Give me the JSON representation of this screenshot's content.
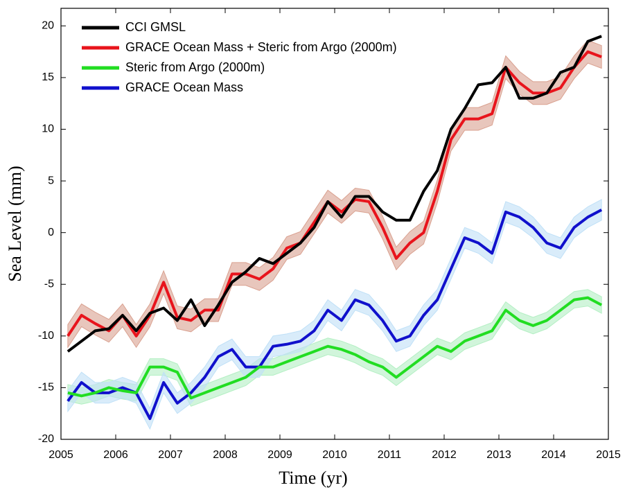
{
  "chart_data": {
    "type": "line",
    "x_label": "Time (yr)",
    "y_label": "Sea Level (mm)",
    "xlim": [
      2005,
      2015
    ],
    "ylim": [
      -20,
      21.7
    ],
    "xticks": [
      2005,
      2006,
      2007,
      2008,
      2009,
      2010,
      2011,
      2012,
      2013,
      2014,
      2015
    ],
    "yticks": [
      -20,
      -15,
      -10,
      -5,
      0,
      5,
      10,
      15,
      20
    ],
    "grid": false,
    "legend": "upper left",
    "x": [
      2005.125,
      2005.375,
      2005.625,
      2005.875,
      2006.125,
      2006.375,
      2006.625,
      2006.875,
      2007.125,
      2007.375,
      2007.625,
      2007.875,
      2008.125,
      2008.375,
      2008.625,
      2008.875,
      2009.125,
      2009.375,
      2009.625,
      2009.875,
      2010.125,
      2010.375,
      2010.625,
      2010.875,
      2011.125,
      2011.375,
      2011.625,
      2011.875,
      2012.125,
      2012.375,
      2012.625,
      2012.875,
      2013.125,
      2013.375,
      2013.625,
      2013.875,
      2014.125,
      2014.375,
      2014.625,
      2014.875
    ],
    "series": [
      {
        "name": "CCI GMSL",
        "color": "#000000",
        "values": [
          -11.5,
          -10.5,
          -9.5,
          -9.3,
          -8.0,
          -9.5,
          -7.8,
          -7.3,
          -8.5,
          -6.5,
          -9.0,
          -7.0,
          -4.8,
          -3.8,
          -2.5,
          -3.0,
          -2.0,
          -1.0,
          0.5,
          3.0,
          1.5,
          3.5,
          3.5,
          2.0,
          1.2,
          1.2,
          4.0,
          6.0,
          10.0,
          12.0,
          14.3,
          14.5,
          16.0,
          13.0,
          13.0,
          13.5,
          15.5,
          16.0,
          18.5,
          19.0
        ]
      },
      {
        "name": "GRACE Ocean Mass + Steric from Argo (2000m)",
        "color": "#e8141c",
        "band_color": "#d9a08f",
        "error": 1.1,
        "values": [
          -10,
          -8,
          -8.8,
          -9.5,
          -8,
          -10,
          -8,
          -4.8,
          -8.2,
          -8.5,
          -7.5,
          -7.5,
          -4,
          -4,
          -4.5,
          -3.5,
          -1.5,
          -1,
          1,
          3,
          2,
          3.2,
          3,
          0.5,
          -2.5,
          -1,
          0,
          4,
          9,
          11,
          11,
          11.5,
          16,
          14.5,
          13.5,
          13.5,
          14,
          16,
          17.5,
          17
        ]
      },
      {
        "name": "Steric from Argo (2000m)",
        "color": "#22dd22",
        "band_color": "#b3efc3",
        "error": 0.8,
        "values": [
          -15.5,
          -15.8,
          -15.5,
          -15,
          -15.3,
          -15.5,
          -13,
          -13,
          -13.5,
          -16,
          -15.5,
          -15,
          -14.5,
          -14,
          -13,
          -13,
          -12.5,
          -12,
          -11.5,
          -11,
          -11.3,
          -11.8,
          -12.5,
          -13,
          -14,
          -13,
          -12,
          -11,
          -11.5,
          -10.5,
          -10,
          -9.5,
          -7.5,
          -8.5,
          -9,
          -8.5,
          -7.5,
          -6.5,
          -6.3,
          -7
        ]
      },
      {
        "name": "GRACE Ocean Mass",
        "color": "#1010cc",
        "band_color": "#bfe0f7",
        "error": 1.0,
        "values": [
          -16.3,
          -14.5,
          -15.5,
          -15.5,
          -15,
          -15.5,
          -18,
          -14.5,
          -16.5,
          -15.5,
          -14,
          -12,
          -11.3,
          -13,
          -13,
          -11,
          -10.8,
          -10.5,
          -9.5,
          -7.5,
          -8.5,
          -6.5,
          -7,
          -8.5,
          -10.5,
          -10,
          -8,
          -6.5,
          -3.5,
          -0.5,
          -1,
          -2,
          2,
          1.5,
          0.5,
          -1,
          -1.5,
          0.5,
          1.5,
          2.2
        ]
      }
    ]
  }
}
